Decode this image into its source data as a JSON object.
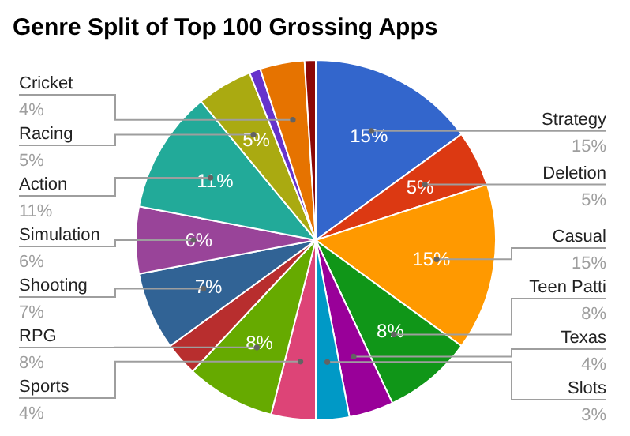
{
  "chart_data": {
    "type": "pie",
    "title": "Genre Split of Top 100 Grossing Apps",
    "categories": [
      "Strategy",
      "Deletion",
      "Casual",
      "Teen Patti",
      "Texas",
      "Slots",
      "Sports",
      "RPG",
      null,
      "Shooting",
      "Simulation",
      "Action",
      "Racing",
      null,
      "Cricket",
      null
    ],
    "values": [
      15,
      5,
      15,
      8,
      4,
      3,
      4,
      8,
      3,
      7,
      6,
      11,
      5,
      1,
      4,
      1
    ],
    "colors": [
      "#3366cc",
      "#dc3912",
      "#ff9900",
      "#109618",
      "#990099",
      "#0099c6",
      "#dd4477",
      "#66aa00",
      "#b82e2e",
      "#316395",
      "#994499",
      "#22aa99",
      "#aaaa11",
      "#6633cc",
      "#e67300",
      "#8b0707"
    ],
    "value_labels": [
      "15%",
      "5%",
      "15%",
      "8%",
      "4%",
      "3%",
      "4%",
      "8%",
      null,
      "7%",
      "6%",
      "11%",
      "5%",
      null,
      "4%",
      null
    ]
  }
}
